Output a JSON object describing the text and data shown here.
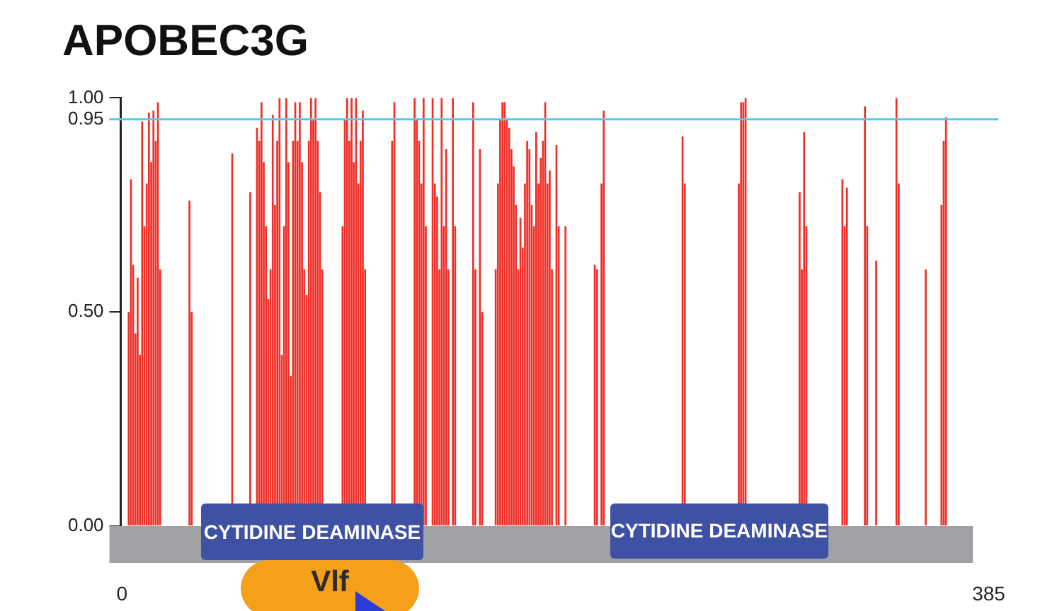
{
  "chart_data": {
    "type": "bar",
    "title": "APOBEC3G",
    "categories": [
      "0",
      null,
      null,
      null,
      null,
      null,
      null,
      null,
      null,
      null,
      null,
      null,
      null,
      null,
      null,
      null,
      null,
      null,
      null,
      null,
      null,
      null,
      null,
      null,
      null,
      null,
      null,
      null,
      null,
      null,
      null,
      null,
      null,
      null,
      null,
      null,
      null,
      null,
      null,
      null,
      null,
      null,
      null,
      null,
      null,
      null,
      null,
      null,
      null,
      null,
      null,
      null,
      null,
      null,
      null,
      null,
      null,
      null,
      null,
      null,
      null,
      null,
      null,
      null,
      null,
      null,
      null,
      null,
      null,
      null,
      null,
      null,
      null,
      null,
      null,
      null,
      null,
      null,
      null,
      null,
      null,
      null,
      null,
      null,
      null,
      null,
      null,
      null,
      null,
      null,
      null,
      null,
      null,
      null,
      null,
      null,
      null,
      null,
      null,
      null,
      null,
      null,
      null,
      null,
      null,
      null,
      null,
      null,
      null,
      null,
      null,
      null,
      null,
      null,
      null,
      null,
      null,
      null,
      null,
      null,
      null,
      null,
      null,
      null,
      null,
      null,
      null,
      null,
      null,
      null,
      null,
      null,
      null,
      null,
      null,
      null,
      null,
      null,
      null,
      null,
      null,
      null,
      null,
      null,
      null,
      null,
      null,
      null,
      null,
      null,
      null,
      null,
      null,
      null,
      null,
      null,
      null,
      null,
      null,
      null,
      null,
      null,
      null,
      null,
      null,
      null,
      null,
      null,
      null,
      null,
      null,
      null,
      null,
      null,
      null,
      null,
      null,
      null,
      null,
      null,
      null,
      null,
      null,
      null,
      null,
      null,
      null,
      null,
      null,
      null,
      null,
      null,
      null,
      null,
      null,
      null,
      null,
      null,
      null,
      null,
      null,
      null,
      null,
      null,
      null,
      null,
      null,
      null,
      null,
      null,
      null,
      null,
      null,
      null,
      null,
      null,
      null,
      null,
      null,
      null,
      null,
      null,
      null,
      null,
      null,
      null,
      null,
      null,
      null,
      null,
      null,
      null,
      null,
      null,
      null,
      null,
      null,
      null,
      null,
      null,
      null,
      null,
      null,
      null,
      null,
      null,
      null,
      null,
      null,
      null,
      null,
      null,
      null,
      null,
      null,
      null,
      null,
      null,
      null,
      null,
      null,
      null,
      null,
      null,
      null,
      null,
      null,
      null,
      null,
      null,
      null,
      null,
      null,
      null,
      null,
      null,
      null,
      null,
      null,
      null,
      null,
      null,
      null,
      null,
      null,
      null,
      null,
      null,
      null,
      null,
      null,
      null,
      null,
      null,
      null,
      null,
      null,
      null,
      null,
      null,
      null,
      null,
      null,
      null,
      null,
      null,
      null,
      null,
      null,
      null,
      null,
      null,
      null,
      null,
      null,
      null,
      null,
      null,
      null,
      null,
      null,
      null,
      null,
      null,
      null,
      null,
      null,
      null,
      null,
      null,
      null,
      null,
      null,
      null,
      null,
      null,
      null,
      null,
      null,
      null,
      null,
      null,
      null,
      null,
      null,
      null,
      null,
      null,
      null,
      null,
      null,
      null,
      null,
      null,
      null,
      null,
      null,
      null,
      null,
      null,
      null,
      null,
      null,
      null,
      null,
      null,
      null,
      null,
      null,
      null,
      null,
      null,
      null,
      null,
      null,
      null,
      null,
      null,
      null,
      null,
      null,
      null,
      null,
      null,
      null,
      "385"
    ],
    "values": [
      0,
      0,
      0,
      0.5,
      0.81,
      0.61,
      0.45,
      0.58,
      0.4,
      0.945,
      0.7,
      0.8,
      0.965,
      0.85,
      0.97,
      0.9,
      0.99,
      0.6,
      0,
      0,
      0,
      0,
      0,
      0,
      0,
      0,
      0,
      0,
      0,
      0,
      0.76,
      0.5,
      0,
      0,
      0,
      0,
      0,
      0,
      0,
      0,
      0,
      0,
      0,
      0,
      0,
      0,
      0,
      0,
      0,
      0.87,
      0,
      0,
      0,
      0,
      0,
      0,
      0,
      0.78,
      0,
      0,
      0.93,
      0.9,
      0.99,
      0.85,
      0.7,
      0.53,
      0.6,
      0.96,
      0.75,
      0.9,
      1.0,
      0.4,
      0.7,
      1.0,
      0.85,
      0.35,
      0.9,
      0.99,
      0.9,
      0.99,
      0.85,
      0.6,
      0.54,
      0.9,
      1.0,
      0.95,
      1.0,
      0.9,
      0.78,
      0.6,
      0,
      0,
      0,
      0,
      0,
      0,
      0,
      0,
      0.7,
      0.95,
      1.0,
      0.9,
      1.0,
      0.85,
      1.0,
      0.8,
      0.9,
      0.97,
      0.6,
      0,
      0,
      0,
      0,
      0,
      0,
      0,
      0,
      0,
      0,
      0,
      0.9,
      0.99,
      0,
      0,
      0,
      0,
      0,
      0,
      0,
      0,
      1.0,
      0.95,
      0.9,
      0.8,
      1.0,
      0.7,
      0,
      0,
      1.0,
      0.8,
      0.77,
      0.6,
      1.0,
      0.7,
      0.88,
      0.6,
      0,
      1.0,
      0.7,
      0,
      0,
      0,
      0,
      0,
      0,
      0,
      0.99,
      0.6,
      0,
      0.88,
      0.5,
      0,
      0,
      0,
      0,
      0,
      0.6,
      0.8,
      0.95,
      0.99,
      0.99,
      0.95,
      0.93,
      0.88,
      0.84,
      0.75,
      0.6,
      0.72,
      0.65,
      0.8,
      0.9,
      0.88,
      0.75,
      0.7,
      0.92,
      0.8,
      0.86,
      0.9,
      0.99,
      0.8,
      0.83,
      0.6,
      0,
      0.89,
      0.7,
      0,
      0,
      0.7,
      0,
      0,
      0,
      0,
      0,
      0,
      0,
      0,
      0,
      0,
      0,
      0,
      0.61,
      0.6,
      0,
      0.8,
      0.97,
      0,
      0,
      0,
      0,
      0,
      0,
      0,
      0,
      0,
      0,
      0,
      0,
      0,
      0,
      0,
      0,
      0,
      0,
      0,
      0,
      0,
      0,
      0,
      0,
      0,
      0,
      0,
      0,
      0,
      0,
      0,
      0,
      0,
      0,
      0.91,
      0.8,
      0,
      0,
      0,
      0,
      0,
      0,
      0,
      0,
      0,
      0,
      0,
      0,
      0,
      0,
      0,
      0,
      0,
      0,
      0,
      0,
      0,
      0,
      0,
      0.8,
      0.99,
      0.99,
      1.0,
      0,
      0,
      0,
      0,
      0,
      0,
      0,
      0,
      0,
      0,
      0,
      0,
      0,
      0,
      0,
      0,
      0,
      0,
      0,
      0,
      0,
      0,
      0,
      0.78,
      0.6,
      0.92,
      0.7,
      0,
      0,
      0,
      0,
      0,
      0,
      0,
      0,
      0,
      0,
      0,
      0,
      0,
      0,
      0,
      0.81,
      0.7,
      0.79,
      0,
      0,
      0,
      0,
      0,
      0,
      0,
      0.98,
      0.7,
      0,
      0,
      0,
      0.62,
      0,
      0,
      0,
      0,
      0,
      0,
      0,
      0,
      1.0,
      0.8,
      0,
      0,
      0,
      0,
      0,
      0,
      0,
      0,
      0,
      0,
      0,
      0.6,
      0,
      0,
      0,
      0,
      0,
      0,
      0.75,
      0.9,
      0.955,
      0,
      0,
      0,
      0,
      0,
      0,
      0,
      0,
      0,
      0,
      0,
      0,
      0,
      0,
      0,
      0,
      0,
      0,
      0
    ],
    "color": "#ee3029",
    "ylim": [
      0,
      1
    ],
    "yticks": [
      {
        "value": 0,
        "label": "0.00"
      },
      {
        "value": 0.5,
        "label": "0.50"
      },
      {
        "value": 0.95,
        "label": "0.95"
      },
      {
        "value": 1,
        "label": "1.00"
      }
    ],
    "ref_lines": [
      {
        "axis": "y",
        "value": 0.95,
        "color": "#5bc8ea"
      }
    ],
    "annotations": [
      "CYTIDINE DEAMINASE",
      "CYTIDINE DEAMINASE",
      "Vlf"
    ],
    "grid": false,
    "legend": false
  }
}
